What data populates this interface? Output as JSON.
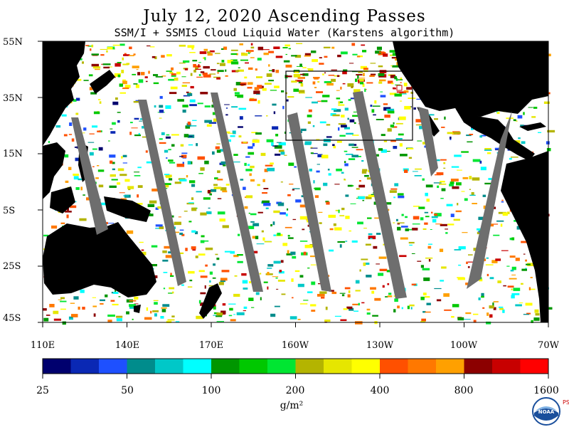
{
  "header": {
    "title": "July 12, 2020  Ascending Passes",
    "subtitle": "SSM/I + SSMIS Cloud Liquid Water (Karstens algorithm)"
  },
  "axes": {
    "latitude_labels": [
      "55N",
      "35N",
      "15N",
      "5S",
      "25S",
      "45S"
    ],
    "longitude_labels": [
      "110E",
      "140E",
      "170E",
      "160W",
      "130W",
      "100W",
      "70W"
    ]
  },
  "colorbar": {
    "units": "g/m²",
    "tick_labels": [
      "25",
      "50",
      "100",
      "200",
      "400",
      "800",
      "1600"
    ],
    "colors": [
      "#00006e",
      "#0a28b4",
      "#1e50ff",
      "#008c8c",
      "#00c8c8",
      "#00ffff",
      "#009600",
      "#00c800",
      "#00e632",
      "#b4b400",
      "#e6e600",
      "#ffff00",
      "#ff5000",
      "#ff7800",
      "#ffa000",
      "#8c0000",
      "#c80000",
      "#ff0000"
    ]
  },
  "logo": {
    "name": "noaa-logo",
    "text": "NOAA",
    "side_mark": "PSL"
  },
  "palette": {
    "land": "#000000",
    "no_data_swath": "#6e6e6e",
    "ocean_clear": "#ffffff"
  }
}
